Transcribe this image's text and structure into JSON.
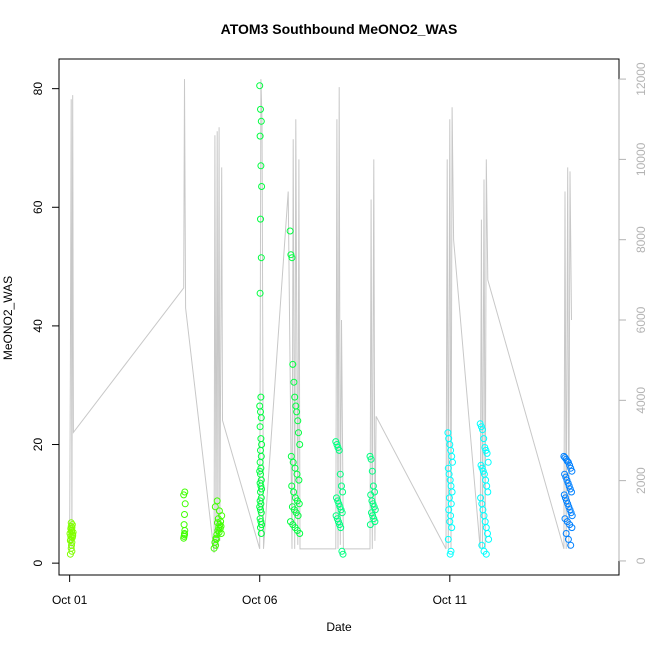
{
  "chart_data": {
    "type": "scatter",
    "title": "ATOM3 Southbound MeONO2_WAS",
    "xlabel": "Date",
    "ylabel": "MeONO2_WAS",
    "x_tick_labels": [
      "Oct 01",
      "Oct 06",
      "Oct 11"
    ],
    "x_tick_days": [
      1,
      6,
      11
    ],
    "xlim_days": [
      0.72,
      15.45
    ],
    "ylim": [
      -2,
      85
    ],
    "y_ticks": [
      0,
      20,
      40,
      60,
      80
    ],
    "y2_label": "",
    "y2lim": [
      -350,
      12500
    ],
    "y2_ticks": [
      0,
      2000,
      4000,
      6000,
      8000,
      10000,
      12000
    ],
    "grid": false,
    "legend": "none",
    "colors": {
      "altitude_trace": "#c8c8c8",
      "right_axis": "#b3b3b3",
      "points_early": "#80ff00",
      "points_mid": "#00ff40",
      "points_late": "#00ffff",
      "points_end": "#0080ff"
    },
    "altitude_trace": [
      [
        1.0,
        300
      ],
      [
        1.02,
        5000
      ],
      [
        1.04,
        11500
      ],
      [
        1.06,
        300
      ],
      [
        1.08,
        11600
      ],
      [
        1.1,
        3200
      ],
      [
        4.0,
        6800
      ],
      [
        4.02,
        12000
      ],
      [
        4.05,
        6300
      ],
      [
        4.8,
        200
      ],
      [
        4.82,
        10600
      ],
      [
        4.85,
        300
      ],
      [
        4.88,
        10700
      ],
      [
        4.9,
        300
      ],
      [
        4.93,
        10800
      ],
      [
        4.95,
        500
      ],
      [
        5.0,
        9800
      ],
      [
        5.02,
        3500
      ],
      [
        6.0,
        300
      ],
      [
        6.03,
        12000
      ],
      [
        6.06,
        11000
      ],
      [
        6.1,
        300
      ],
      [
        6.75,
        9200
      ],
      [
        6.85,
        300
      ],
      [
        6.88,
        10500
      ],
      [
        6.92,
        300
      ],
      [
        6.95,
        11000
      ],
      [
        7.0,
        400
      ],
      [
        7.03,
        10000
      ],
      [
        7.06,
        300
      ],
      [
        8.0,
        300
      ],
      [
        8.03,
        11000
      ],
      [
        8.06,
        300
      ],
      [
        8.09,
        11800
      ],
      [
        8.12,
        400
      ],
      [
        8.15,
        6000
      ],
      [
        8.2,
        300
      ],
      [
        8.9,
        300
      ],
      [
        8.93,
        9000
      ],
      [
        8.96,
        300
      ],
      [
        9.0,
        10000
      ],
      [
        9.03,
        500
      ],
      [
        9.06,
        3600
      ],
      [
        10.9,
        300
      ],
      [
        10.93,
        10000
      ],
      [
        10.96,
        300
      ],
      [
        11.0,
        11000
      ],
      [
        11.03,
        300
      ],
      [
        11.06,
        11300
      ],
      [
        11.1,
        8000
      ],
      [
        11.8,
        300
      ],
      [
        11.83,
        8500
      ],
      [
        11.86,
        300
      ],
      [
        11.9,
        9500
      ],
      [
        11.93,
        300
      ],
      [
        11.96,
        10000
      ],
      [
        12.0,
        7000
      ],
      [
        14.0,
        300
      ],
      [
        14.03,
        9200
      ],
      [
        14.06,
        300
      ],
      [
        14.1,
        9800
      ],
      [
        14.13,
        300
      ],
      [
        14.16,
        9700
      ],
      [
        14.2,
        6000
      ]
    ],
    "series": [
      {
        "color": "#80ff00",
        "x": [
          1.02,
          1.04,
          1.05,
          1.06,
          1.03,
          1.07,
          1.08,
          1.01,
          1.09,
          1.05,
          1.03,
          1.06,
          1.04,
          1.07,
          1.02,
          1.08,
          1.05,
          1.06,
          1.03,
          1.04
        ],
        "y": [
          1.5,
          2.5,
          3.0,
          3.5,
          4.0,
          4.3,
          4.6,
          5.0,
          5.2,
          5.5,
          5.8,
          6.0,
          6.2,
          6.5,
          3.8,
          4.8,
          5.3,
          2.0,
          4.5,
          6.8
        ]
      },
      {
        "color": "#40ff00",
        "x": [
          4.0,
          4.02,
          4.03,
          4.01,
          4.02,
          4.04,
          4.0,
          4.03,
          4.02,
          4.01,
          4.8,
          4.82,
          4.85,
          4.87,
          4.9,
          4.92,
          4.95,
          4.97,
          5.0,
          4.83,
          4.88,
          4.93,
          4.98,
          4.86,
          4.91,
          4.96,
          4.84,
          4.89,
          4.94,
          4.99
        ],
        "y": [
          4.2,
          4.8,
          5.5,
          6.5,
          8.2,
          10.0,
          11.5,
          12.0,
          5.0,
          4.5,
          2.5,
          3.5,
          4.2,
          4.8,
          5.5,
          6.0,
          6.5,
          7.0,
          8.0,
          9.5,
          10.5,
          5.2,
          6.2,
          4.0,
          7.5,
          5.8,
          3.0,
          6.8,
          8.8,
          5.0
        ]
      },
      {
        "color": "#00ff40",
        "x": [
          6.0,
          6.02,
          6.04,
          6.01,
          6.03,
          6.05,
          6.02,
          6.04,
          6.01,
          6.03,
          6.0,
          6.02,
          6.04,
          6.01,
          6.03,
          6.05,
          6.02,
          6.04,
          6.01,
          6.03,
          6.0,
          6.02,
          6.04,
          6.01,
          6.03,
          6.05,
          6.02,
          6.04,
          6.01,
          6.03,
          6.0,
          6.02,
          6.04,
          6.01,
          6.03,
          6.05,
          6.02,
          6.04
        ],
        "y": [
          80.5,
          76.5,
          74.5,
          72,
          67,
          63.5,
          58,
          51.5,
          45.5,
          28,
          26.5,
          25.5,
          24.5,
          23,
          21,
          20,
          19,
          18,
          17,
          16,
          15.5,
          15,
          14,
          13.5,
          13,
          12.5,
          12,
          11,
          10.5,
          10,
          9.5,
          9,
          8.5,
          7.5,
          7,
          6.5,
          6,
          5
        ]
      },
      {
        "color": "#00ff40",
        "x": [
          6.8,
          6.82,
          6.85,
          6.87,
          6.9,
          6.92,
          6.95,
          6.97,
          7.0,
          7.02,
          7.05,
          6.83,
          6.88,
          6.93,
          6.98,
          7.03,
          6.84,
          6.89,
          6.94,
          6.99,
          7.04,
          6.86,
          6.91,
          6.96,
          7.01,
          6.81,
          6.87,
          6.93,
          6.99,
          7.05
        ],
        "y": [
          56,
          52,
          51.5,
          33.5,
          30.5,
          28,
          26.5,
          25.5,
          24,
          22,
          20,
          18,
          17,
          16,
          15,
          14,
          13,
          12,
          11,
          10.5,
          10,
          9.5,
          9,
          8.5,
          8,
          7,
          6.5,
          6,
          5.5,
          5
        ]
      },
      {
        "color": "#00ff80",
        "x": [
          8.0,
          8.03,
          8.06,
          8.09,
          8.12,
          8.15,
          8.18,
          8.02,
          8.05,
          8.08,
          8.11,
          8.14,
          8.17,
          8.01,
          8.04,
          8.07,
          8.1,
          8.13,
          8.16,
          8.19,
          8.9,
          8.93,
          8.96,
          8.99,
          9.02,
          8.92,
          8.95,
          8.98,
          9.01,
          9.04,
          8.94,
          8.97,
          9.0,
          9.03,
          8.91
        ],
        "y": [
          20.5,
          20,
          19.5,
          19,
          15,
          13,
          12,
          11,
          10.5,
          10,
          9.5,
          9,
          8.5,
          8,
          7.5,
          7,
          6.5,
          6,
          2,
          1.5,
          18,
          17.5,
          15.5,
          13,
          12,
          11.5,
          10.5,
          10,
          9.5,
          9,
          8.5,
          8,
          7.5,
          7,
          6.5
        ]
      },
      {
        "color": "#00ffff",
        "x": [
          10.95,
          10.97,
          11.0,
          11.02,
          11.05,
          11.07,
          10.96,
          10.98,
          11.01,
          11.03,
          11.06,
          10.99,
          11.04,
          10.97,
          11.02,
          11.0,
          11.05,
          10.96,
          11.03,
          11.01
        ],
        "y": [
          22,
          21,
          20,
          19,
          18,
          17,
          16,
          15,
          14,
          13,
          12,
          11,
          10,
          9,
          8,
          7,
          6,
          4,
          2,
          1.5
        ]
      },
      {
        "color": "#00ffff",
        "x": [
          11.8,
          11.83,
          11.86,
          11.89,
          11.92,
          11.95,
          11.98,
          12.01,
          11.82,
          11.85,
          11.88,
          11.91,
          11.94,
          11.97,
          12.0,
          11.81,
          11.84,
          11.87,
          11.9,
          11.93,
          11.96,
          11.99,
          12.02,
          11.84,
          11.9,
          11.96
        ],
        "y": [
          23.5,
          23,
          22.5,
          21,
          19.5,
          19,
          18.5,
          17,
          16.5,
          16,
          15.5,
          15,
          14,
          13,
          12,
          11,
          10,
          9,
          8,
          7,
          6,
          5,
          4,
          3,
          2,
          1.5
        ]
      },
      {
        "color": "#0080ff",
        "x": [
          14.0,
          14.03,
          14.06,
          14.09,
          14.12,
          14.15,
          14.18,
          14.21,
          14.02,
          14.05,
          14.08,
          14.11,
          14.14,
          14.17,
          14.2,
          14.01,
          14.04,
          14.07,
          14.1,
          14.13,
          14.16,
          14.19,
          14.22,
          14.03,
          14.09,
          14.15,
          14.21,
          14.06,
          14.12,
          14.18
        ],
        "y": [
          18,
          17.8,
          17.5,
          17.2,
          17,
          16.5,
          16,
          15.5,
          15,
          14.5,
          14,
          13.5,
          13,
          12.5,
          12,
          11.5,
          11,
          10.5,
          10,
          9.5,
          9,
          8.5,
          8,
          7.5,
          7,
          6.5,
          6,
          5,
          4,
          3
        ]
      }
    ]
  }
}
